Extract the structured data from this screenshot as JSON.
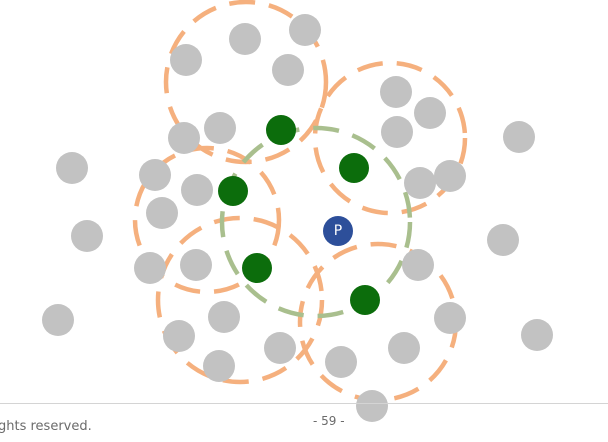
{
  "diagram": {
    "query_point_label": "P",
    "colors": {
      "background_point": "#c2c2c2",
      "neighbor_point": "#0c6d0c",
      "query_point": "#2d4f9a",
      "neighbor_range": "#f5b07e",
      "query_range": "#a9bf8e"
    }
  },
  "footer": {
    "rights_text": "ghts reserved.",
    "page_number": "- 59 -"
  }
}
